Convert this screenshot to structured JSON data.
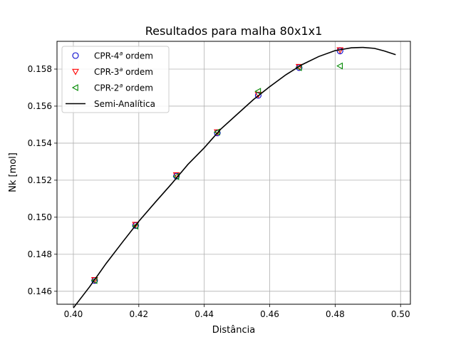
{
  "chart_data": {
    "type": "scatter",
    "title": "Resultados para malha 80x1x1",
    "xlabel": "Distância",
    "ylabel": "Nk [mol]",
    "xlim": [
      0.395,
      0.503
    ],
    "ylim": [
      0.1453,
      0.1595
    ],
    "xticks": [
      0.4,
      0.42,
      0.44,
      0.46,
      0.48,
      0.5
    ],
    "yticks": [
      0.146,
      0.148,
      0.15,
      0.152,
      0.154,
      0.156,
      0.158
    ],
    "xtick_labels": [
      "0.40",
      "0.42",
      "0.44",
      "0.46",
      "0.48",
      "0.50"
    ],
    "ytick_labels": [
      "0.146",
      "0.148",
      "0.150",
      "0.152",
      "0.154",
      "0.156",
      "0.158"
    ],
    "grid": true,
    "legend_position": "top-left",
    "series": [
      {
        "name_prefix": "CPR-4",
        "name_sup": "a",
        "name_suffix": " ordem",
        "marker": "circle",
        "color": "#0000cc",
        "x": [
          0.4065,
          0.419,
          0.4315,
          0.444,
          0.4565,
          0.469,
          0.4815
        ],
        "y": [
          0.14658,
          0.14955,
          0.15222,
          0.15455,
          0.15658,
          0.15808,
          0.15898
        ]
      },
      {
        "name_prefix": "CPR-3",
        "name_sup": "a",
        "name_suffix": " ordem",
        "marker": "triangle-down",
        "color": "#ff0000",
        "x": [
          0.4065,
          0.419,
          0.4315,
          0.444,
          0.4565,
          0.469,
          0.4815
        ],
        "y": [
          0.14662,
          0.1496,
          0.15228,
          0.1546,
          0.15663,
          0.15813,
          0.15903
        ]
      },
      {
        "name_prefix": "CPR-2",
        "name_sup": "a",
        "name_suffix": " ordem",
        "marker": "triangle-left",
        "color": "#008800",
        "x": [
          0.4065,
          0.419,
          0.4315,
          0.444,
          0.4565,
          0.469,
          0.4815
        ],
        "y": [
          0.14658,
          0.14952,
          0.1522,
          0.1546,
          0.1568,
          0.15808,
          0.15817
        ]
      },
      {
        "name": "Semi-Analítica",
        "marker": "line",
        "color": "#000000",
        "x": [
          0.4,
          0.405,
          0.41,
          0.415,
          0.42,
          0.425,
          0.43,
          0.435,
          0.44,
          0.445,
          0.45,
          0.455,
          0.46,
          0.465,
          0.47,
          0.475,
          0.48,
          0.485,
          0.4885,
          0.492,
          0.495,
          0.4985
        ],
        "y": [
          0.1451,
          0.14625,
          0.1475,
          0.14865,
          0.14978,
          0.1508,
          0.1518,
          0.15285,
          0.15375,
          0.15475,
          0.15555,
          0.15635,
          0.15705,
          0.1577,
          0.15825,
          0.15868,
          0.159,
          0.15915,
          0.15917,
          0.15912,
          0.15898,
          0.15878
        ]
      }
    ]
  }
}
